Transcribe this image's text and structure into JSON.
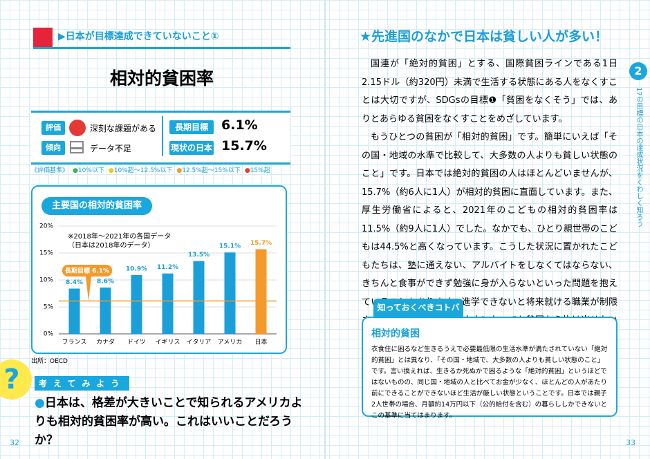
{
  "left": {
    "header": "▶日本が目標達成できていないこと①",
    "title": "相対的貧困率",
    "status": {
      "eval_label": "評価",
      "eval_text": "深刻な課題がある",
      "trend_label": "傾向",
      "trend_text": "データ不足",
      "goal_label": "長期目標",
      "goal_value": "6.1%",
      "current_label": "現状の日本",
      "current_value": "15.7%"
    },
    "criteria": {
      "title": "《評価基準》",
      "items": [
        {
          "text": "10%以下",
          "color": "#3fb54a"
        },
        {
          "text": "10%超～12.5%以下",
          "color": "#f2c522"
        },
        {
          "text": "12.5%超～15%以下",
          "color": "#f39a2b"
        },
        {
          "text": "15%超",
          "color": "#e53935"
        }
      ]
    },
    "source": "出所：OECD",
    "think_label": "考えてみよう",
    "question": "日本は、格差が大きいことで知られるアメリカよりも相対的貧困率が高い。これはいいことだろうか？",
    "page": "32"
  },
  "chart_data": {
    "type": "bar",
    "title": "主要国の相対的貧困率",
    "notes": [
      "※2018年～2021年の各国データ",
      "（日本は2018年のデータ）"
    ],
    "categories": [
      "フランス",
      "カナダ",
      "ドイツ",
      "イギリス",
      "イタリア",
      "アメリカ",
      "日本"
    ],
    "values": [
      8.4,
      8.6,
      10.9,
      11.2,
      13.5,
      15.1,
      15.7
    ],
    "value_labels": [
      "8.4%",
      "8.6%",
      "10.9%",
      "11.2%",
      "13.5%",
      "15.1%",
      "15.7%"
    ],
    "colors": [
      "#1a9fd8",
      "#1a9fd8",
      "#1a9fd8",
      "#1a9fd8",
      "#1a9fd8",
      "#1a9fd8",
      "#f39a2b"
    ],
    "ylim": [
      0,
      20
    ],
    "yticks": [
      {
        "value": 0,
        "label": "0%"
      },
      {
        "value": 5,
        "label": "5%"
      },
      {
        "value": 10,
        "label": "10%"
      },
      {
        "value": 15,
        "label": "15%"
      },
      {
        "value": 20,
        "label": "20%"
      }
    ],
    "grid": true,
    "reference_line": {
      "value": 6.1,
      "label": "長期目標 6.1%",
      "color": "#f39a2b"
    }
  },
  "right": {
    "title": "★先進国のなかで日本は貧しい人が多い！",
    "paragraphs": [
      "国連が「絶対的貧困」とする、国際貧困ラインである1日2.15ドル（約320円）未満で生活する状態にある人をなくすことは大切ですが、SDGsの目標❶「貧困をなくそう」では、ありとあらゆる貧困をなくすことをめざしています。",
      "もうひとつの貧困が「相対的貧困」です。簡単にいえば「その国・地域の水準で比較して、大多数の人よりも貧しい状態のこと」です。日本では絶対的貧困の人はほとんどいませんが、15.7%（約6人に1人）が相対的貧困に直面しています。また、厚生労働省によると、2021年のこどもの相対的貧困率は11.5%（約9人に1人）でした。なかでも、ひとり親世帯のこどもは44.5%と高くなっています。こうした状況に置かれたこどもたちは、塾に通えない、アルバイトをしなくてはならない、きちんと食事ができず勉強に身が入らないといった問題を抱えていることもあります。進学できないと将来就ける職業が制限される現実があるため、大人になっても貧困から抜け出せないという貧困の連鎖につながる可能性が高くなってしまうのです。"
    ],
    "glossary": {
      "label": "知っておくべきコトバ",
      "term": "相対的貧困",
      "definition": "衣食住に困るなど生きるうえで必要最低限の生活水準が満たされていない「絶対的貧困」とは異なり、「その国・地域で、大多数の人よりも貧しい状態のこと」です。言い換えれば、生きるか死ぬかで困るような「絶対的貧困」というほどではないものの、同じ国・地域の人と比べてお金が少なく、ほとんどの人があたり前にできることができないほど生活が厳しい状態ということです。日本では親子2人世帯の場合、月額約14万円以下（公的給付を含む）の暮らししかできないとこの基準に当てはまります。"
    },
    "chapter_no": "2",
    "chapter_text": "17の目標の日本の達成状況をくわしく知ろう",
    "page": "33"
  }
}
